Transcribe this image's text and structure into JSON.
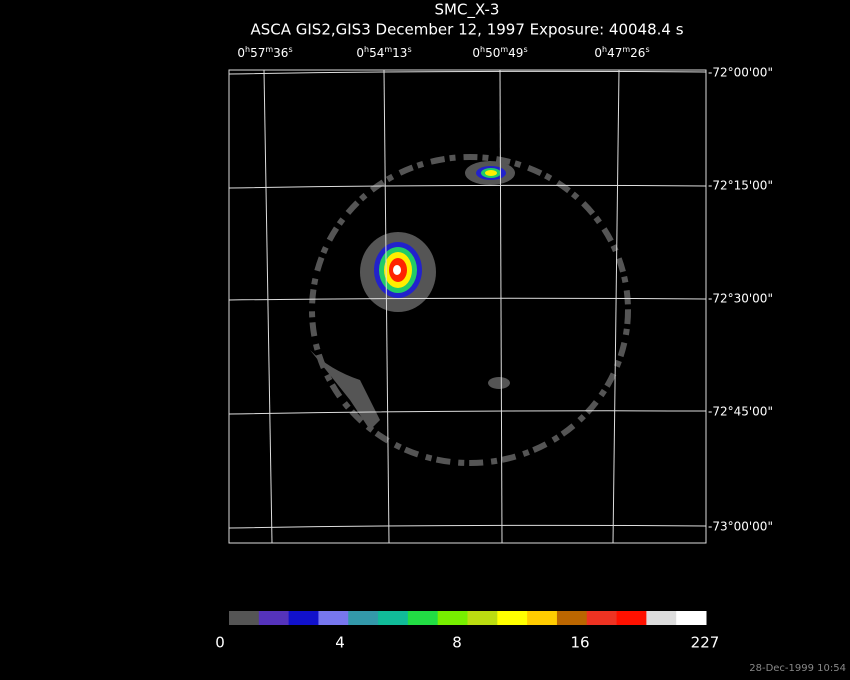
{
  "header": {
    "title": "SMC_X-3",
    "subtitle": "ASCA GIS2,GIS3 December 12, 1997 Exposure: 40048.4 s"
  },
  "ra_labels": [
    {
      "parts": [
        "0",
        "h",
        "57",
        "m",
        "36",
        "s"
      ]
    },
    {
      "parts": [
        "0",
        "h",
        "54",
        "m",
        "13",
        "s"
      ]
    },
    {
      "parts": [
        "0",
        "h",
        "50",
        "m",
        "49",
        "s"
      ]
    },
    {
      "parts": [
        "0",
        "h",
        "47",
        "m",
        "26",
        "s"
      ]
    }
  ],
  "dec_labels": [
    "-72°00'00\"",
    "-72°15'00\"",
    "-72°30'00\"",
    "-72°45'00\"",
    "-73°00'00\""
  ],
  "colorbar": {
    "labels": [
      0,
      4,
      8,
      16,
      227
    ]
  },
  "timestamp": "28-Dec-1999 10:54"
}
